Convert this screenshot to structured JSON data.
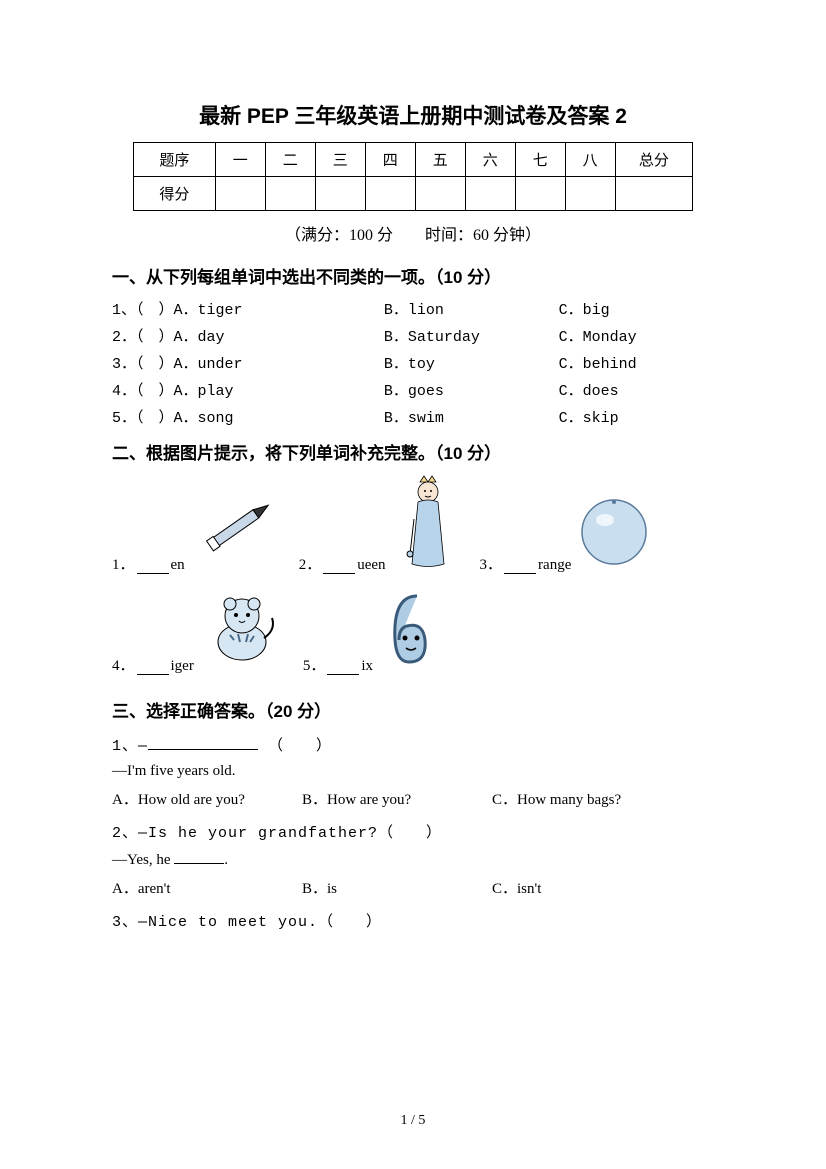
{
  "title": "最新 PEP 三年级英语上册期中测试卷及答案 2",
  "score_table": {
    "row1_label": "题序",
    "row2_label": "得分",
    "cols": [
      "一",
      "二",
      "三",
      "四",
      "五",
      "六",
      "七",
      "八"
    ],
    "total_label": "总分"
  },
  "meta": "（满分：100 分　　时间：60 分钟）",
  "section1": {
    "title": "一、从下列每组单词中选出不同类的一项。（10 分）",
    "items": [
      {
        "n": "1、",
        "a": "（　）A．tiger",
        "b": "B．lion",
        "c": "C．big"
      },
      {
        "n": "2．",
        "a": "（　）A．day",
        "b": "B．Saturday",
        "c": "C．Monday"
      },
      {
        "n": "3．",
        "a": "（　）A．under",
        "b": "B．toy",
        "c": "C．behind"
      },
      {
        "n": "4．",
        "a": "（　）A．play",
        "b": "B．goes",
        "c": "C．does"
      },
      {
        "n": "5．",
        "a": "（　）A．song",
        "b": "B．swim",
        "c": "C．skip"
      }
    ]
  },
  "section2": {
    "title": "二、根据图片提示，将下列单词补充完整。（10 分）",
    "items": [
      {
        "n": "1．",
        "suffix": "en",
        "icon": "pen"
      },
      {
        "n": "2．",
        "suffix": "ueen",
        "icon": "queen"
      },
      {
        "n": "3．",
        "suffix": "range",
        "icon": "orange"
      },
      {
        "n": "4．",
        "suffix": "iger",
        "icon": "tiger"
      },
      {
        "n": "5．",
        "suffix": "ix",
        "icon": "six"
      }
    ]
  },
  "section3": {
    "title": "三、选择正确答案。（20 分）",
    "q1": {
      "prompt_prefix": "1、—",
      "prompt_suffix": "（　　）",
      "reply": "—I'm five years old.",
      "opts": [
        "A．How old are you?",
        "B．How are you?",
        "C．How many bags?"
      ]
    },
    "q2": {
      "prompt": "2、—Is he your grandfather?（　　）",
      "reply_prefix": "—Yes, he ",
      "reply_suffix": ".",
      "opts": [
        "A．aren't",
        "B．is",
        "C．isn't"
      ]
    },
    "q3": {
      "prompt": "3、—Nice to meet you.（　　）"
    }
  },
  "pagenum": "1 / 5",
  "colors": {
    "text": "#000000",
    "bg": "#ffffff",
    "pen_body": "#c9d8e8",
    "pen_tip": "#333333",
    "queen_dress": "#b8d4ea",
    "queen_skin": "#f7e6d4",
    "queen_crown": "#f4d890",
    "orange_fill": "#c9dff0",
    "orange_stroke": "#5a7a9a",
    "tiger_body": "#d6e6f2",
    "tiger_stripe": "#4a6a8a",
    "six_fill": "#aecde4",
    "six_stroke": "#3a5a7a"
  }
}
